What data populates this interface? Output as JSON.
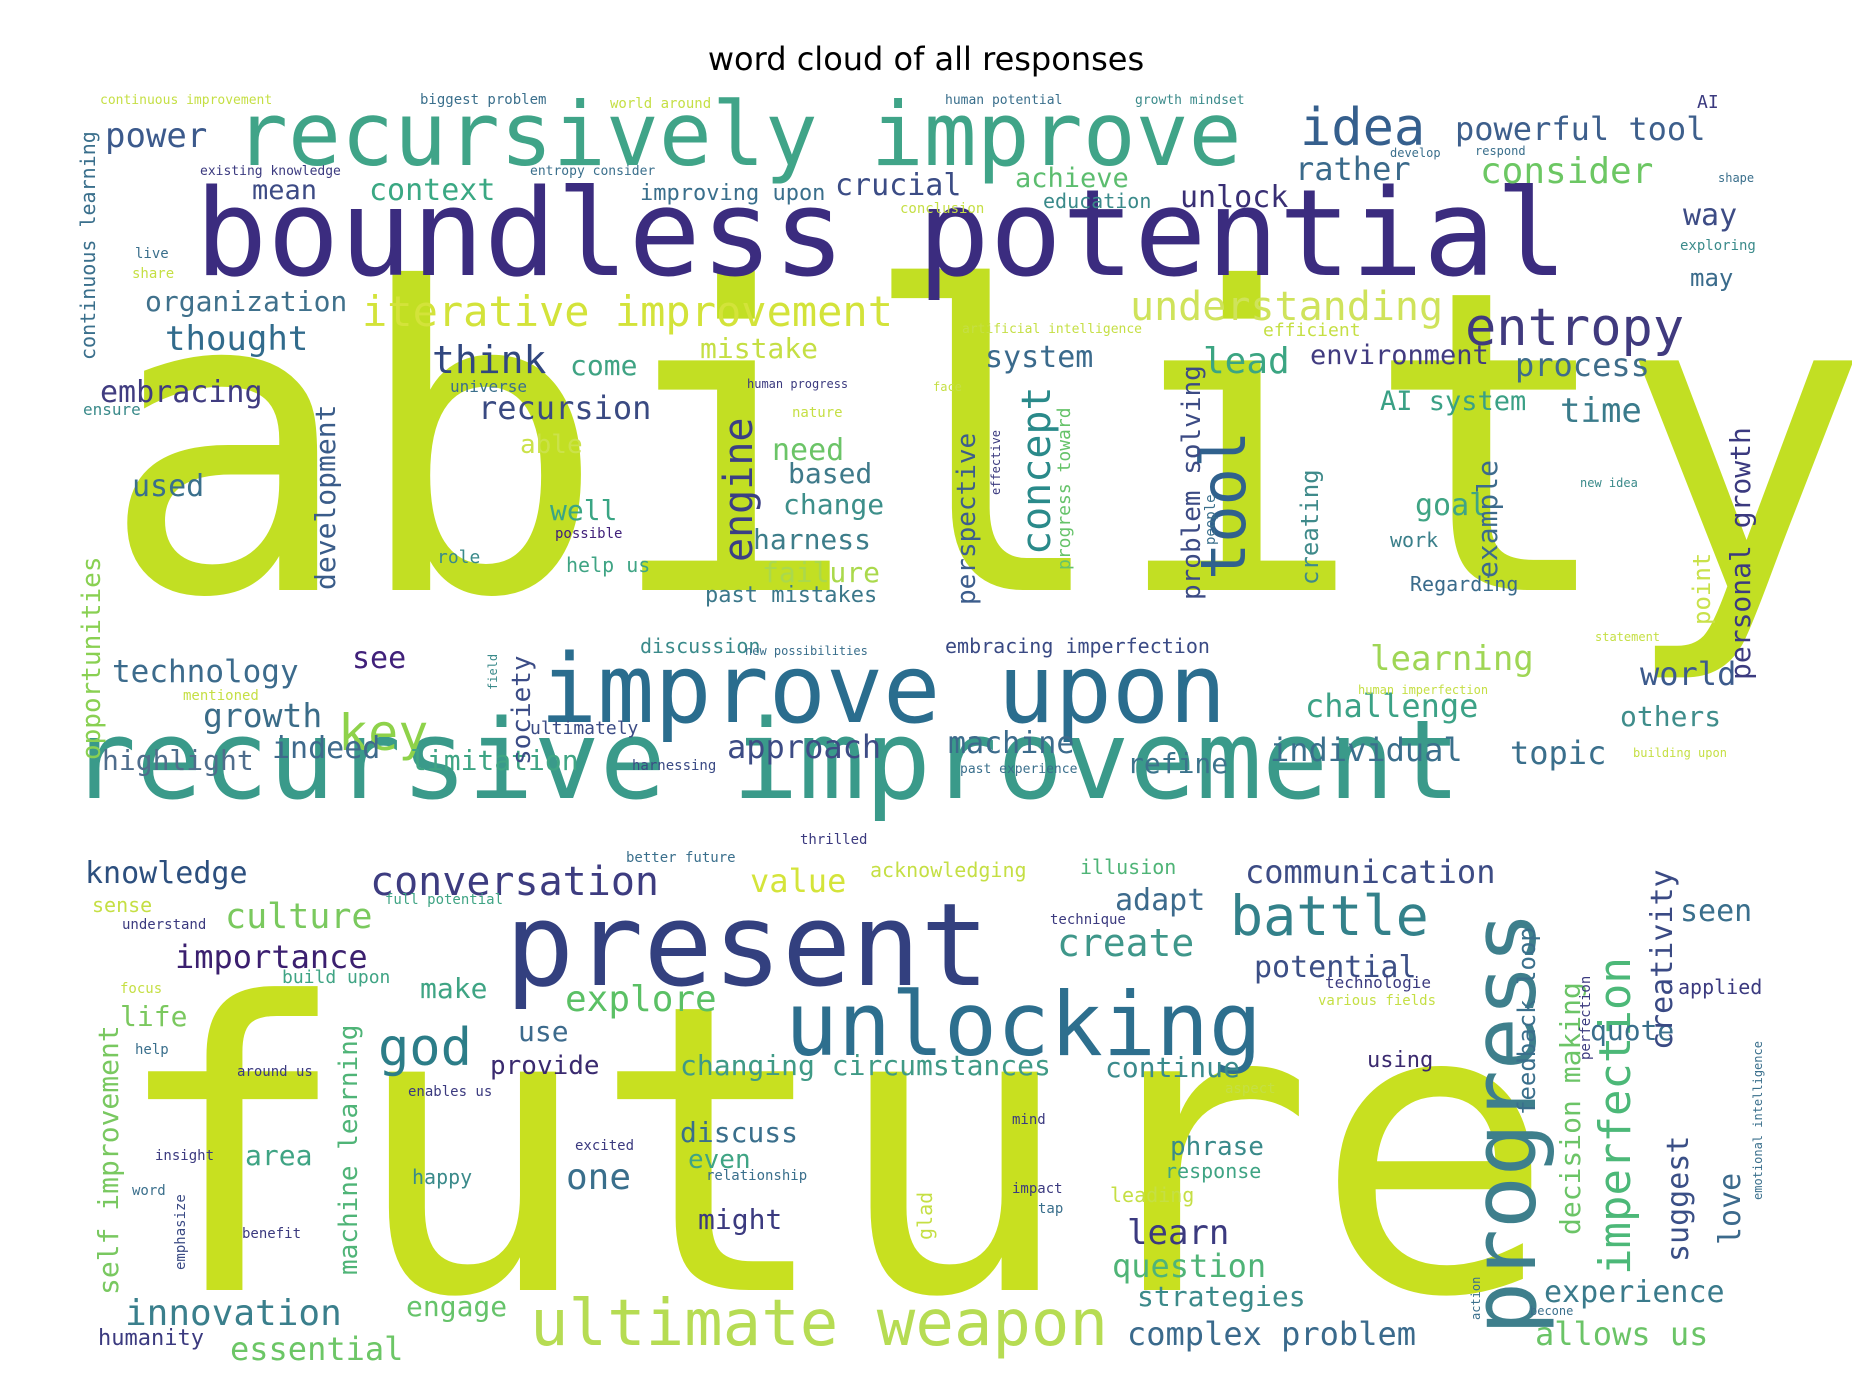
{
  "chart_data": {
    "type": "wordcloud",
    "title": "word cloud of all responses",
    "colormap": "viridis",
    "words": [
      {
        "text": "ability",
        "weight": 100,
        "color": "#c2df23"
      },
      {
        "text": "future",
        "weight": 97,
        "color": "#c8e020"
      },
      {
        "text": "boundless potential",
        "weight": 40,
        "color": "#3b2c7f"
      },
      {
        "text": "recursive improvement",
        "weight": 36,
        "color": "#3a9a8a"
      },
      {
        "text": "recursively improve",
        "weight": 30,
        "color": "#40a488"
      },
      {
        "text": "present",
        "weight": 31,
        "color": "#33407f"
      },
      {
        "text": "improve upon",
        "weight": 28,
        "color": "#2a6d8e"
      },
      {
        "text": "unlocking",
        "weight": 25,
        "color": "#2d6f8e"
      },
      {
        "text": "progress",
        "weight": 25,
        "color": "#3e7f8c"
      },
      {
        "text": "ultimate weapon",
        "weight": 18,
        "color": "#b6dc53"
      },
      {
        "text": "entropy",
        "weight": 14,
        "color": "#403a7e"
      },
      {
        "text": "tool",
        "weight": 16,
        "color": "#30618d"
      },
      {
        "text": "idea",
        "weight": 13,
        "color": "#355f8d"
      },
      {
        "text": "battle",
        "weight": 13,
        "color": "#33818a"
      },
      {
        "text": "god",
        "weight": 13,
        "color": "#2c7d88"
      },
      {
        "text": "imperfection",
        "weight": 12,
        "color": "#4cb878"
      },
      {
        "text": "key",
        "weight": 12,
        "color": "#8ed24a"
      },
      {
        "text": "concept",
        "weight": 11,
        "color": "#2a8a8a"
      },
      {
        "text": "engine",
        "weight": 10,
        "color": "#3b3f84"
      },
      {
        "text": "iterative improvement",
        "weight": 10,
        "color": "#d3e33a"
      },
      {
        "text": "understanding",
        "weight": 9,
        "color": "#cfe35b"
      },
      {
        "text": "conversation",
        "weight": 9,
        "color": "#3d3c80"
      },
      {
        "text": "innovation",
        "weight": 8,
        "color": "#3a7f8c"
      },
      {
        "text": "powerful tool",
        "weight": 7,
        "color": "#3d5f8c"
      },
      {
        "text": "consider",
        "weight": 7,
        "color": "#6cc763"
      },
      {
        "text": "power",
        "weight": 7,
        "color": "#3c5a8c"
      },
      {
        "text": "explore",
        "weight": 8,
        "color": "#5bc065"
      },
      {
        "text": "create",
        "weight": 8,
        "color": "#3f978a"
      },
      {
        "text": "culture",
        "weight": 7,
        "color": "#7ac95e"
      },
      {
        "text": "importance",
        "weight": 7,
        "color": "#3b1f6f"
      },
      {
        "text": "essential",
        "weight": 7,
        "color": "#6cc666"
      },
      {
        "text": "knowledge",
        "weight": 6,
        "color": "#2c4f7e"
      },
      {
        "text": "technology",
        "weight": 6,
        "color": "#3c6b8c"
      },
      {
        "text": "growth",
        "weight": 6,
        "color": "#3b6c88"
      },
      {
        "text": "thought",
        "weight": 6,
        "color": "#316b8c"
      },
      {
        "text": "think",
        "weight": 7,
        "color": "#31477f"
      },
      {
        "text": "recursion",
        "weight": 6,
        "color": "#3a4a82"
      },
      {
        "text": "embracing",
        "weight": 6,
        "color": "#403c80"
      },
      {
        "text": "organization",
        "weight": 5,
        "color": "#40718c"
      },
      {
        "text": "context",
        "weight": 6,
        "color": "#3aa883"
      },
      {
        "text": "crucial",
        "weight": 6,
        "color": "#3b4c85"
      },
      {
        "text": "unlock",
        "weight": 6,
        "color": "#392f74"
      },
      {
        "text": "achieve",
        "weight": 5,
        "color": "#5cbd6f"
      },
      {
        "text": "rather",
        "weight": 6,
        "color": "#3a6a8b"
      },
      {
        "text": "way",
        "weight": 6,
        "color": "#3d4c85"
      },
      {
        "text": "may",
        "weight": 4,
        "color": "#3a6b8b"
      },
      {
        "text": "lead",
        "weight": 6,
        "color": "#3ba582"
      },
      {
        "text": "environment",
        "weight": 5,
        "color": "#413b80"
      },
      {
        "text": "process",
        "weight": 6,
        "color": "#3f6d8a"
      },
      {
        "text": "time",
        "weight": 6,
        "color": "#3a7b8b"
      },
      {
        "text": "AI system",
        "weight": 5,
        "color": "#3aa085"
      },
      {
        "text": "system",
        "weight": 6,
        "color": "#3a6a8c"
      },
      {
        "text": "mistake",
        "weight": 5,
        "color": "#c5df44"
      },
      {
        "text": "come",
        "weight": 5,
        "color": "#3fa383"
      },
      {
        "text": "need",
        "weight": 6,
        "color": "#6bc467"
      },
      {
        "text": "based",
        "weight": 5,
        "color": "#3f7a8a"
      },
      {
        "text": "change",
        "weight": 5,
        "color": "#3d8f8a"
      },
      {
        "text": "harness",
        "weight": 5,
        "color": "#3d7d8a"
      },
      {
        "text": "failure",
        "weight": 5,
        "color": "#aad94c"
      },
      {
        "text": "past mistakes",
        "weight": 4,
        "color": "#3b778a"
      },
      {
        "text": "well",
        "weight": 5,
        "color": "#3aa584"
      },
      {
        "text": "able",
        "weight": 4,
        "color": "#cbe24a"
      },
      {
        "text": "used",
        "weight": 6,
        "color": "#3a6f8c"
      },
      {
        "text": "mean",
        "weight": 5,
        "color": "#3d4b85"
      },
      {
        "text": "development",
        "weight": 5,
        "color": "#3a5c89"
      },
      {
        "text": "perspective",
        "weight": 5,
        "color": "#3c5d8c"
      },
      {
        "text": "problem solving",
        "weight": 5,
        "color": "#3c4b84"
      },
      {
        "text": "progress toward",
        "weight": 4,
        "color": "#66c36a"
      },
      {
        "text": "creating",
        "weight": 5,
        "color": "#3f8a8a"
      },
      {
        "text": "goal",
        "weight": 6,
        "color": "#3fa484"
      },
      {
        "text": "example",
        "weight": 5,
        "color": "#3c6b8c"
      },
      {
        "text": "work",
        "weight": 4,
        "color": "#3a7f8a"
      },
      {
        "text": "Regarding",
        "weight": 4,
        "color": "#3a6b8b"
      },
      {
        "text": "point",
        "weight": 5,
        "color": "#c9e14a"
      },
      {
        "text": "personal growth",
        "weight": 5,
        "color": "#3b3a7f"
      },
      {
        "text": "learning",
        "weight": 6,
        "color": "#9fd655"
      },
      {
        "text": "challenge",
        "weight": 6,
        "color": "#3ca286"
      },
      {
        "text": "world",
        "weight": 6,
        "color": "#3c5a8c"
      },
      {
        "text": "others",
        "weight": 5,
        "color": "#3f8d8b"
      },
      {
        "text": "individual",
        "weight": 6,
        "color": "#3a6f8c"
      },
      {
        "text": "topic",
        "weight": 6,
        "color": "#3a6f8c"
      },
      {
        "text": "refine",
        "weight": 5,
        "color": "#3b738c"
      },
      {
        "text": "machine",
        "weight": 6,
        "color": "#3c6b8c"
      },
      {
        "text": "approach",
        "weight": 6,
        "color": "#3d4c85"
      },
      {
        "text": "limitation",
        "weight": 5,
        "color": "#3fa584"
      },
      {
        "text": "indeed",
        "weight": 6,
        "color": "#3f6a8c"
      },
      {
        "text": "highlight",
        "weight": 5,
        "color": "#4f6d8c"
      },
      {
        "text": "see",
        "weight": 5,
        "color": "#40207a"
      },
      {
        "text": "society",
        "weight": 5,
        "color": "#3b4c86"
      },
      {
        "text": "opportunities",
        "weight": 5,
        "color": "#89d052"
      },
      {
        "text": "communication",
        "weight": 6,
        "color": "#3d4c85"
      },
      {
        "text": "value",
        "weight": 6,
        "color": "#d4e43a"
      },
      {
        "text": "adapt",
        "weight": 5,
        "color": "#3c6a8c"
      },
      {
        "text": "potential",
        "weight": 6,
        "color": "#3c4f86"
      },
      {
        "text": "make",
        "weight": 5,
        "color": "#3fa484"
      },
      {
        "text": "life",
        "weight": 5,
        "color": "#7bc85f"
      },
      {
        "text": "use",
        "weight": 5,
        "color": "#3c6a8c"
      },
      {
        "text": "provide",
        "weight": 5,
        "color": "#3a2a6f"
      },
      {
        "text": "changing circumstances",
        "weight": 5,
        "color": "#3f9a86"
      },
      {
        "text": "continue",
        "weight": 5,
        "color": "#3a8a8c"
      },
      {
        "text": "discuss",
        "weight": 5,
        "color": "#3a6f8c"
      },
      {
        "text": "even",
        "weight": 5,
        "color": "#3fa484"
      },
      {
        "text": "one",
        "weight": 6,
        "color": "#3a6f8c"
      },
      {
        "text": "might",
        "weight": 5,
        "color": "#3b3a7f"
      },
      {
        "text": "area",
        "weight": 5,
        "color": "#3fa484"
      },
      {
        "text": "learn",
        "weight": 6,
        "color": "#3b3a7f"
      },
      {
        "text": "question",
        "weight": 6,
        "color": "#4fb477"
      },
      {
        "text": "strategies",
        "weight": 5,
        "color": "#3c8a8a"
      },
      {
        "text": "experience",
        "weight": 5,
        "color": "#3a7a8b"
      },
      {
        "text": "allows us",
        "weight": 6,
        "color": "#6bc467"
      },
      {
        "text": "complex problem",
        "weight": 6,
        "color": "#3a6a8c"
      },
      {
        "text": "engage",
        "weight": 5,
        "color": "#66c36a"
      },
      {
        "text": "humanity",
        "weight": 4,
        "color": "#3b3a7f"
      },
      {
        "text": "suggest",
        "weight": 5,
        "color": "#3a4f86"
      },
      {
        "text": "love",
        "weight": 5,
        "color": "#3c6a8c"
      },
      {
        "text": "quote",
        "weight": 5,
        "color": "#3a6f8c"
      },
      {
        "text": "using",
        "weight": 4,
        "color": "#3b2a6f"
      },
      {
        "text": "decision making",
        "weight": 5,
        "color": "#6cc467"
      },
      {
        "text": "feedback loop",
        "weight": 5,
        "color": "#3a6f8c"
      },
      {
        "text": "creativity",
        "weight": 5,
        "color": "#3a4a84"
      },
      {
        "text": "seen",
        "weight": 5,
        "color": "#3a6f8c"
      },
      {
        "text": "applied",
        "weight": 4,
        "color": "#3b3a7f"
      },
      {
        "text": "phrase",
        "weight": 4,
        "color": "#3a8a8a"
      },
      {
        "text": "response",
        "weight": 3,
        "color": "#3fa484"
      },
      {
        "text": "self improvement",
        "weight": 5,
        "color": "#79c860"
      },
      {
        "text": "machine learning",
        "weight": 5,
        "color": "#4fb477"
      },
      {
        "text": "continuous learning",
        "weight": 4,
        "color": "#3a6f8c"
      },
      {
        "text": "discussion",
        "weight": 4,
        "color": "#3a8a8a"
      },
      {
        "text": "embracing imperfection",
        "weight": 4,
        "color": "#3a4a84"
      },
      {
        "text": "role",
        "weight": 3,
        "color": "#3a8a8a"
      },
      {
        "text": "help us",
        "weight": 3,
        "color": "#3fa484"
      },
      {
        "text": "possible",
        "weight": 2,
        "color": "#40207a"
      },
      {
        "text": "ultimately",
        "weight": 3,
        "color": "#3a4a84"
      },
      {
        "text": "harnessing",
        "weight": 2,
        "color": "#3a4a84"
      },
      {
        "text": "thrilled",
        "weight": 2,
        "color": "#3b3a7f"
      },
      {
        "text": "better future",
        "weight": 2,
        "color": "#3a6f8c"
      },
      {
        "text": "acknowledging",
        "weight": 3,
        "color": "#c5df44"
      },
      {
        "text": "illusion",
        "weight": 3,
        "color": "#4fb477"
      },
      {
        "text": "technique",
        "weight": 2,
        "color": "#3b3a7f"
      },
      {
        "text": "sense",
        "weight": 3,
        "color": "#c5df44"
      },
      {
        "text": "understand",
        "weight": 2,
        "color": "#3b3a7f"
      },
      {
        "text": "full potential",
        "weight": 2,
        "color": "#3fa484"
      },
      {
        "text": "build upon",
        "weight": 3,
        "color": "#3fa484"
      },
      {
        "text": "focus",
        "weight": 2,
        "color": "#c5df44"
      },
      {
        "text": "help",
        "weight": 2,
        "color": "#3a6f8c"
      },
      {
        "text": "around us",
        "weight": 2,
        "color": "#3b3a7f"
      },
      {
        "text": "enables us",
        "weight": 2,
        "color": "#3b3a7f"
      },
      {
        "text": "insight",
        "weight": 2,
        "color": "#3b3a7f"
      },
      {
        "text": "word",
        "weight": 2,
        "color": "#3a6f8c"
      },
      {
        "text": "benefit",
        "weight": 2,
        "color": "#3b3a7f"
      },
      {
        "text": "emphasize",
        "weight": 2,
        "color": "#3a4a84"
      },
      {
        "text": "excited",
        "weight": 2,
        "color": "#3b3a7f"
      },
      {
        "text": "happy",
        "weight": 3,
        "color": "#3a8a8a"
      },
      {
        "text": "relationship",
        "weight": 2,
        "color": "#3a6f8c"
      },
      {
        "text": "mind",
        "weight": 2,
        "color": "#3b3a7f"
      },
      {
        "text": "impact",
        "weight": 2,
        "color": "#3b3a7f"
      },
      {
        "text": "tap",
        "weight": 2,
        "color": "#3a6f8c"
      },
      {
        "text": "glad",
        "weight": 3,
        "color": "#c5df44"
      },
      {
        "text": "leading",
        "weight": 3,
        "color": "#c5df44"
      },
      {
        "text": "technologie",
        "weight": 2,
        "color": "#3b3a7f"
      },
      {
        "text": "various fields",
        "weight": 2,
        "color": "#c5df44"
      },
      {
        "text": "perfection",
        "weight": 2,
        "color": "#3b3a7f"
      },
      {
        "text": "aspect",
        "weight": 2,
        "color": "#c5df44"
      },
      {
        "text": "action",
        "weight": 2,
        "color": "#3a6f8c"
      },
      {
        "text": "becone",
        "weight": 2,
        "color": "#3a6f8c"
      },
      {
        "text": "emotional intelligence",
        "weight": 2,
        "color": "#3a6f8c"
      },
      {
        "text": "continuous improvement",
        "weight": 2,
        "color": "#c5df44"
      },
      {
        "text": "biggest problem",
        "weight": 2,
        "color": "#3a6f8c"
      },
      {
        "text": "world around",
        "weight": 2,
        "color": "#c5df44"
      },
      {
        "text": "human potential",
        "weight": 2,
        "color": "#3a6f8c"
      },
      {
        "text": "growth mindset",
        "weight": 2,
        "color": "#3a8a8a"
      },
      {
        "text": "AI",
        "weight": 2,
        "color": "#3b3a7f"
      },
      {
        "text": "existing knowledge",
        "weight": 2,
        "color": "#3b3a7f"
      },
      {
        "text": "entropy consider",
        "weight": 2,
        "color": "#3a6f8c"
      },
      {
        "text": "improving upon",
        "weight": 3,
        "color": "#3a6f8c"
      },
      {
        "text": "education",
        "weight": 3,
        "color": "#3a8a8a"
      },
      {
        "text": "conclusion",
        "weight": 2,
        "color": "#c5df44"
      },
      {
        "text": "develop",
        "weight": 2,
        "color": "#3a6f8c"
      },
      {
        "text": "respond",
        "weight": 2,
        "color": "#3a6f8c"
      },
      {
        "text": "shape",
        "weight": 2,
        "color": "#3a6f8c"
      },
      {
        "text": "exploring",
        "weight": 2,
        "color": "#3a8a8a"
      },
      {
        "text": "live",
        "weight": 2,
        "color": "#3a6f8c"
      },
      {
        "text": "share",
        "weight": 2,
        "color": "#c5df44"
      },
      {
        "text": "artificial intelligence",
        "weight": 2,
        "color": "#c5df44"
      },
      {
        "text": "efficient",
        "weight": 2,
        "color": "#c5df44"
      },
      {
        "text": "universe",
        "weight": 2,
        "color": "#3a6f8c"
      },
      {
        "text": "human progress",
        "weight": 2,
        "color": "#3b3a7f"
      },
      {
        "text": "face",
        "weight": 2,
        "color": "#c5df44"
      },
      {
        "text": "ensure",
        "weight": 2,
        "color": "#3a8a8a"
      },
      {
        "text": "nature",
        "weight": 2,
        "color": "#c5df44"
      },
      {
        "text": "effective",
        "weight": 2,
        "color": "#3b3a7f"
      },
      {
        "text": "people",
        "weight": 2,
        "color": "#3a6f8c"
      },
      {
        "text": "new idea",
        "weight": 2,
        "color": "#3a8a8a"
      },
      {
        "text": "statement",
        "weight": 2,
        "color": "#c5df44"
      },
      {
        "text": "new possibilities",
        "weight": 2,
        "color": "#3a6f8c"
      },
      {
        "text": "field",
        "weight": 2,
        "color": "#3a8a8a"
      },
      {
        "text": "human imperfection",
        "weight": 2,
        "color": "#c5df44"
      },
      {
        "text": "mentioned",
        "weight": 2,
        "color": "#c5df44"
      },
      {
        "text": "past experience",
        "weight": 2,
        "color": "#3a6f8c"
      },
      {
        "text": "building upon",
        "weight": 2,
        "color": "#c5df44"
      }
    ]
  }
}
